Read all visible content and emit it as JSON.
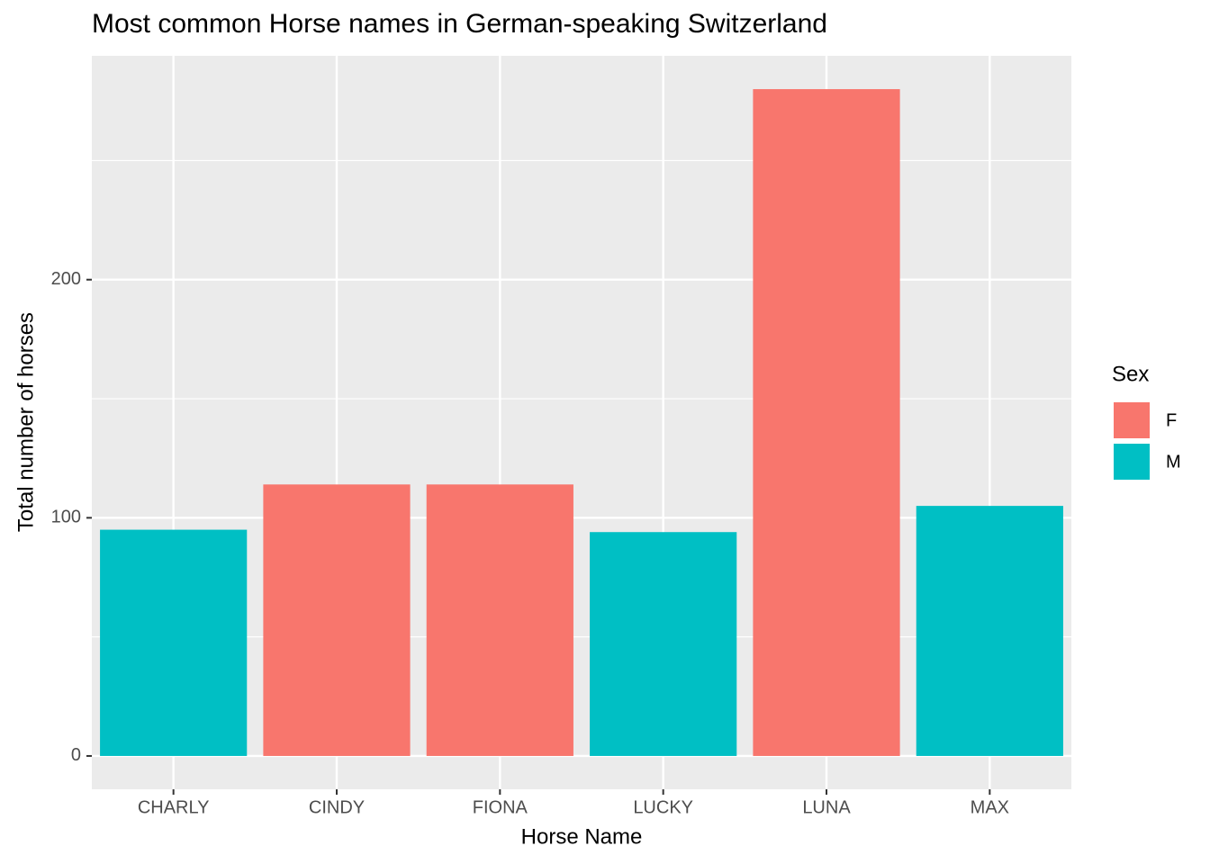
{
  "chart_data": {
    "type": "bar",
    "title": "Most common Horse names in German-speaking Switzerland",
    "x_label": "Horse Name",
    "y_label": "Total number of horses",
    "legend_title": "Sex",
    "legend_position": "right",
    "categories": [
      "CHARLY",
      "CINDY",
      "FIONA",
      "LUCKY",
      "LUNA",
      "MAX"
    ],
    "series": [
      {
        "name": "F",
        "color": "#F8766D",
        "values": [
          null,
          114,
          114,
          null,
          280,
          null
        ]
      },
      {
        "name": "M",
        "color": "#00BFC4",
        "values": [
          95,
          null,
          null,
          94,
          null,
          105
        ]
      }
    ],
    "ylim": [
      -14,
      294
    ],
    "yticks": [
      0,
      100,
      200
    ],
    "minor_yticks": [
      50,
      150,
      250
    ],
    "grid": true
  }
}
